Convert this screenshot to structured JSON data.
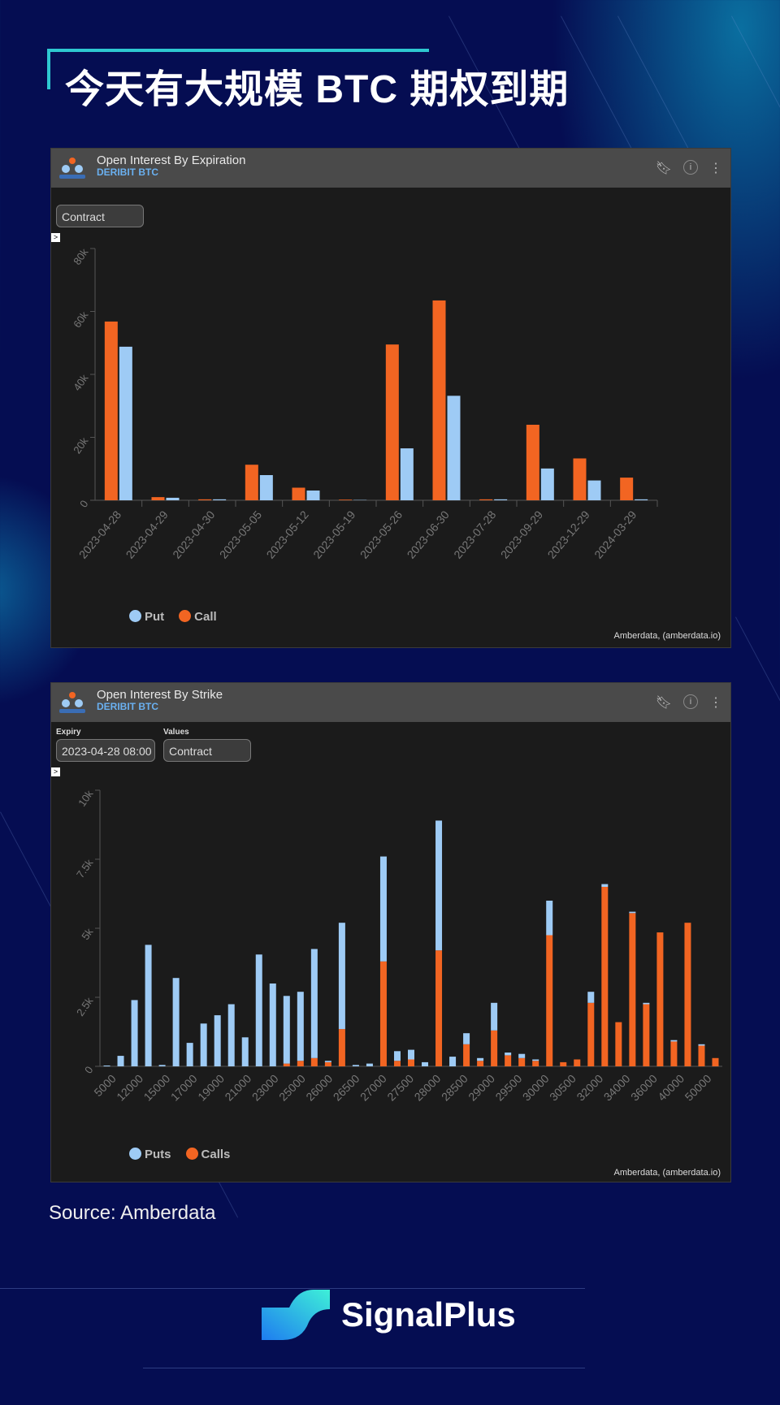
{
  "headline": "今天有大规模 BTC 期权到期",
  "source": "Source: Amberdata",
  "brand": {
    "name": "SignalPlus"
  },
  "colors": {
    "put": "#9ecbf5",
    "call": "#f26522",
    "accent": "#2ec8d0",
    "background": "#050d52",
    "panel": "#1b1b1b"
  },
  "panel1": {
    "title": "Open Interest By Expiration",
    "subtitle": "DERIBIT BTC",
    "select_value": "Contract",
    "toggle": ">",
    "credit": "Amberdata, (amberdata.io)",
    "legend": [
      "Put",
      "Call"
    ],
    "icons": [
      "bookmark-icon",
      "info-icon",
      "more-icon"
    ]
  },
  "panel2": {
    "title": "Open Interest By Strike",
    "subtitle": "DERIBIT BTC",
    "expiry_label": "Expiry",
    "expiry_value": "2023-04-28 08:00",
    "values_label": "Values",
    "values_value": "Contract",
    "toggle": ">",
    "credit": "Amberdata, (amberdata.io)",
    "legend": [
      "Puts",
      "Calls"
    ],
    "icons": [
      "bookmark-icon",
      "info-icon",
      "more-icon"
    ]
  },
  "chart_data": [
    {
      "type": "bar",
      "categories": [
        "2023-04-28",
        "2023-04-29",
        "2023-04-30",
        "2023-05-05",
        "2023-05-12",
        "2023-05-19",
        "2023-05-26",
        "2023-06-30",
        "2023-07-28",
        "2023-09-29",
        "2023-12-29",
        "2024-03-29"
      ],
      "series": [
        {
          "name": "Call",
          "values": [
            56800,
            1000,
            300,
            11300,
            4000,
            200,
            49500,
            63500,
            300,
            24000,
            13300,
            7200
          ]
        },
        {
          "name": "Put",
          "values": [
            48800,
            800,
            300,
            8000,
            3100,
            100,
            16500,
            33200,
            300,
            10100,
            6300,
            300
          ]
        }
      ],
      "yticks": [
        "0",
        "20k",
        "40k",
        "60k",
        "80k"
      ],
      "ylim": [
        0,
        80000
      ],
      "legend": "bottom-left",
      "grid": false
    },
    {
      "type": "bar",
      "stacked": true,
      "tick_labels": [
        "5000",
        "12000",
        "15000",
        "17000",
        "19000",
        "21000",
        "23000",
        "25000",
        "26000",
        "26500",
        "27000",
        "27500",
        "28000",
        "28500",
        "29000",
        "29500",
        "30000",
        "30500",
        "32000",
        "34000",
        "36000",
        "40000",
        "50000"
      ],
      "series": [
        {
          "name": "Calls",
          "values": [
            0,
            0,
            0,
            0,
            0,
            0,
            0,
            0,
            0,
            0,
            0,
            0,
            0,
            100,
            200,
            300,
            150,
            1350,
            0,
            0,
            3800,
            200,
            250,
            0,
            4200,
            0,
            800,
            200,
            1300,
            400,
            300,
            200,
            4750,
            150,
            250,
            2300,
            6500,
            1600,
            5550,
            2250,
            4850,
            900,
            5200,
            750,
            300
          ]
        },
        {
          "name": "Puts",
          "values": [
            30,
            380,
            2400,
            4400,
            50,
            3200,
            850,
            1550,
            1850,
            2250,
            1050,
            4050,
            3000,
            2450,
            2500,
            3950,
            50,
            3850,
            50,
            100,
            3800,
            350,
            350,
            150,
            4700,
            350,
            400,
            100,
            1000,
            100,
            150,
            50,
            1250,
            0,
            0,
            400,
            100,
            0,
            50,
            50,
            0,
            50,
            0,
            50,
            0
          ]
        }
      ],
      "yticks": [
        "0",
        "2.5k",
        "5k",
        "7.5k",
        "10k"
      ],
      "ylim": [
        0,
        10000
      ],
      "legend": "bottom-left",
      "grid": false
    }
  ]
}
